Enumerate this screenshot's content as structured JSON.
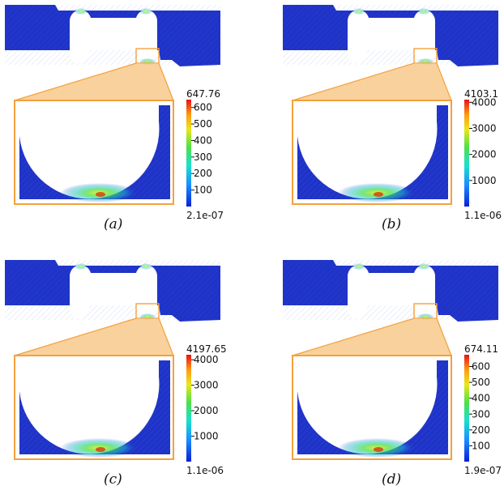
{
  "colors": {
    "beam": "#1f33c8",
    "inset_bg": "#1f33c8",
    "zoom_frame": "#f4a13c",
    "zoom_fill": "#f7c27c"
  },
  "panels": [
    {
      "caption": "(a)",
      "colorbar": {
        "max_label": "647.76",
        "min_label": "2.1e-07",
        "max": 647.76,
        "ticks": [
          100,
          200,
          300,
          400,
          500,
          600
        ]
      }
    },
    {
      "caption": "(b)",
      "colorbar": {
        "max_label": "4103.1",
        "min_label": "1.1e-06",
        "max": 4103.1,
        "ticks": [
          1000,
          2000,
          3000,
          4000
        ]
      }
    },
    {
      "caption": "(c)",
      "colorbar": {
        "max_label": "4197.65",
        "min_label": "1.1e-06",
        "max": 4197.65,
        "ticks": [
          1000,
          2000,
          3000,
          4000
        ]
      }
    },
    {
      "caption": "(d)",
      "colorbar": {
        "max_label": "674.11",
        "min_label": "1.9e-07",
        "max": 674.11,
        "ticks": [
          100,
          200,
          300,
          400,
          500,
          600
        ]
      }
    }
  ]
}
